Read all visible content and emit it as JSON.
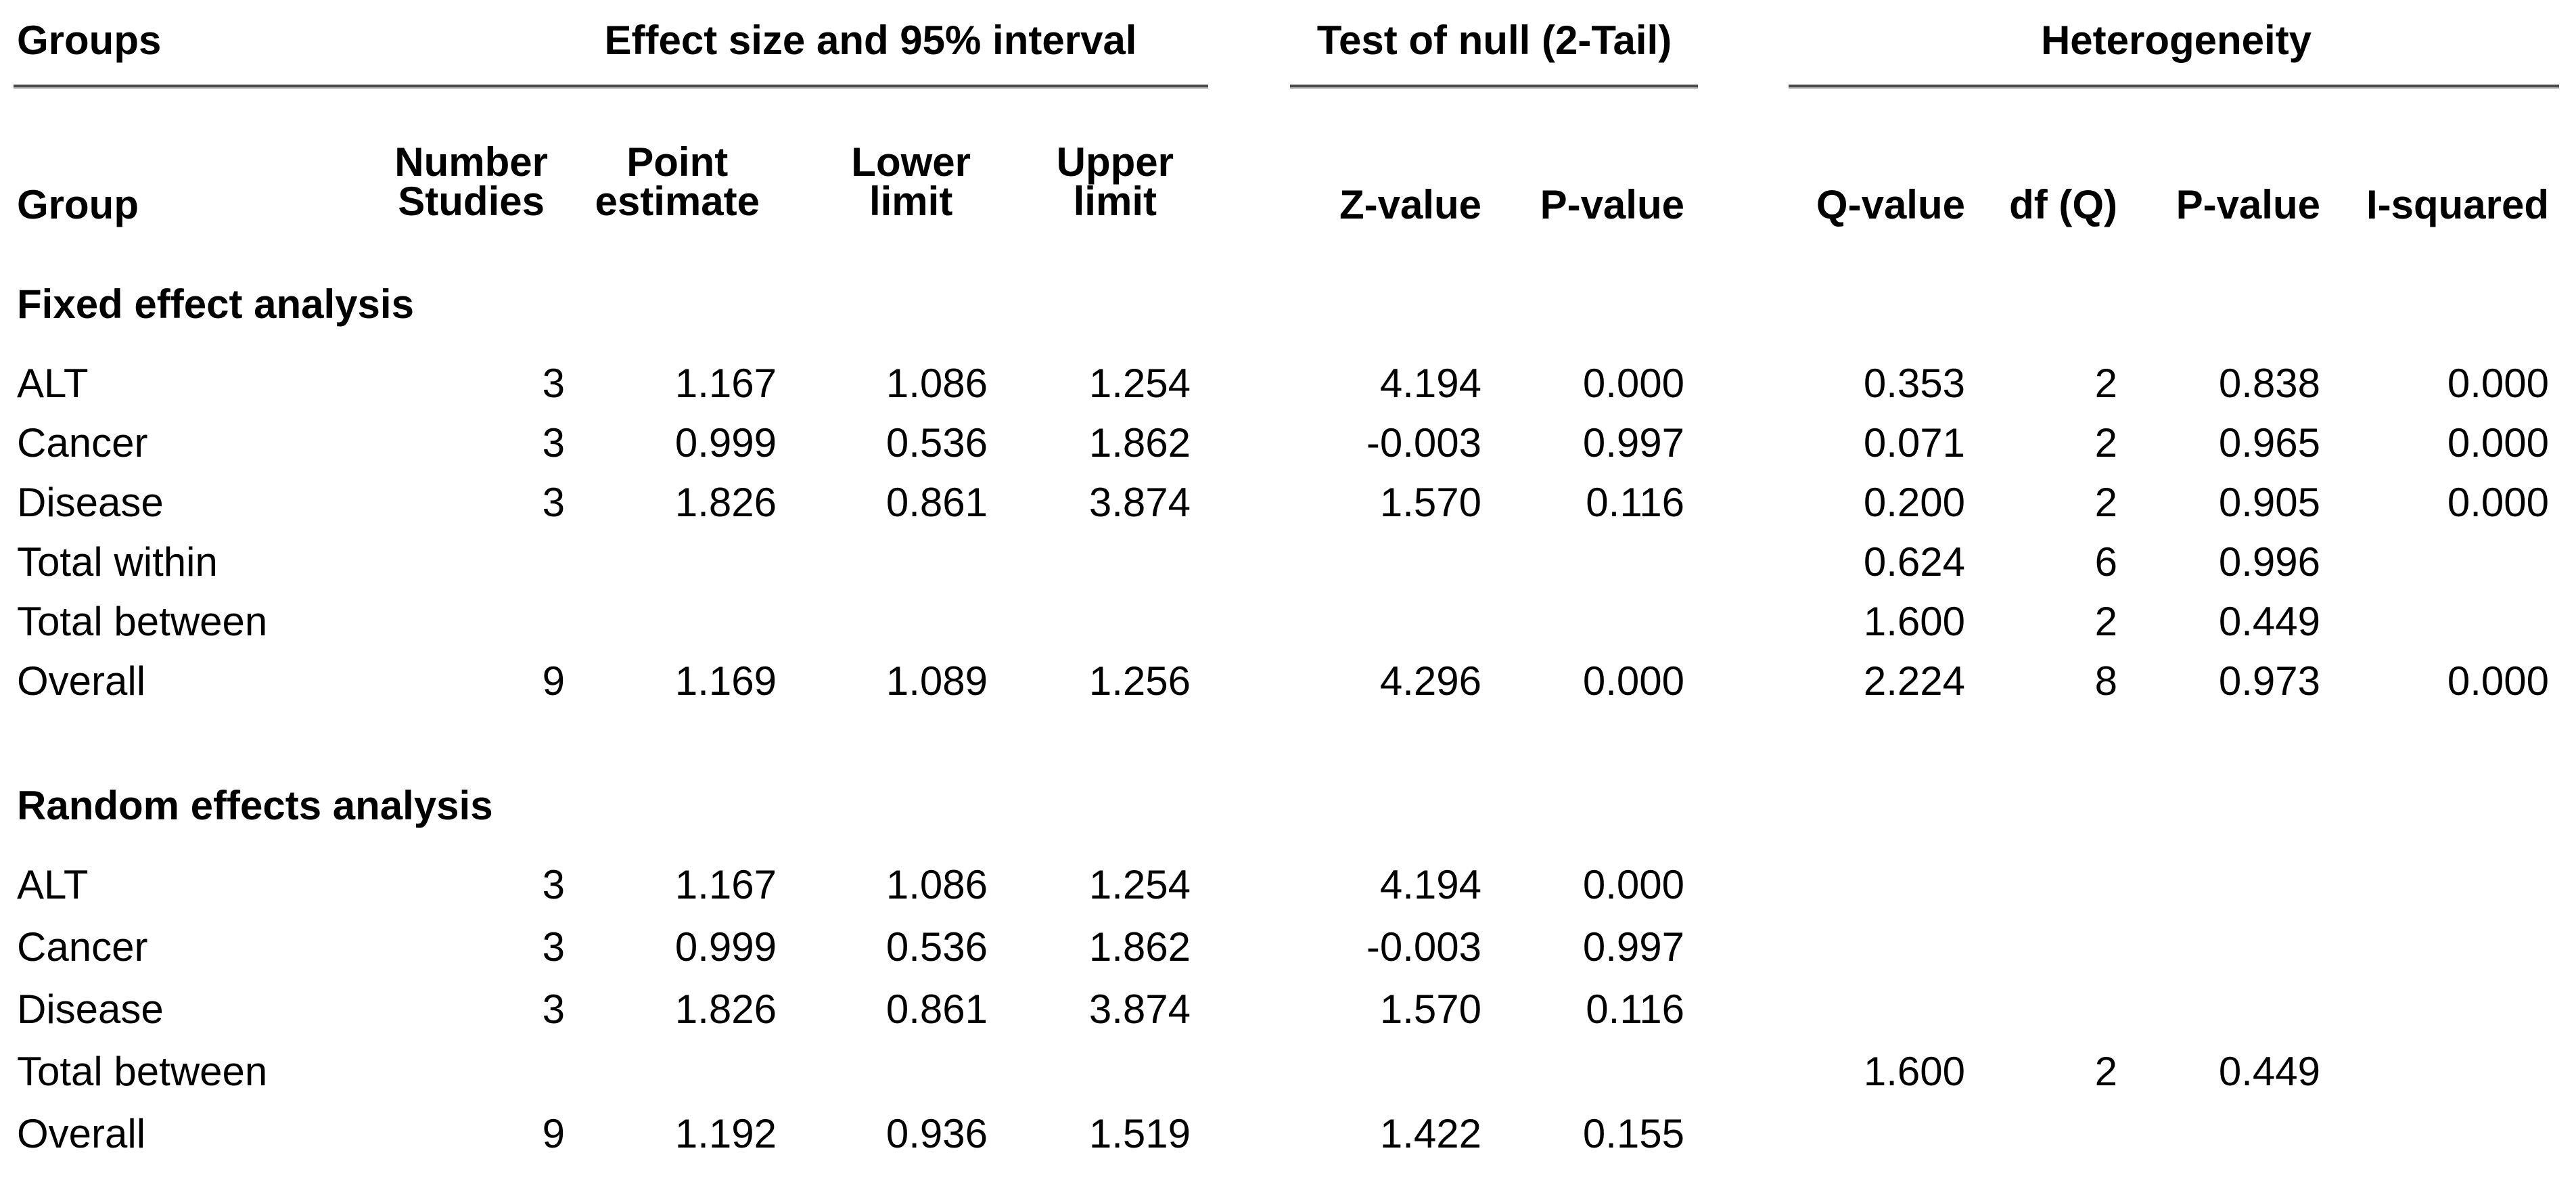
{
  "group_headers": {
    "groups": "Groups",
    "effect": "Effect size and 95% interval",
    "null_test": "Test of null (2-Tail)",
    "heterogeneity": "Heterogeneity"
  },
  "col_headers": {
    "group": "Group",
    "number": {
      "l1": "Number",
      "l2": "Studies"
    },
    "point": {
      "l1": "Point",
      "l2": "estimate"
    },
    "lower": {
      "l1": "Lower",
      "l2": "limit"
    },
    "upper": {
      "l1": "Upper",
      "l2": "limit"
    },
    "z": "Z-value",
    "p": "P-value",
    "q": "Q-value",
    "df": "df (Q)",
    "p_het": "P-value",
    "i2": "I-squared"
  },
  "sections": [
    {
      "title": "Fixed effect analysis",
      "rows": [
        {
          "label": "ALT",
          "n": "3",
          "point": "1.167",
          "lower": "1.086",
          "upper": "1.254",
          "z": "4.194",
          "p": "0.000",
          "q": "0.353",
          "df": "2",
          "p_het": "0.838",
          "i2": "0.000"
        },
        {
          "label": "Cancer",
          "n": "3",
          "point": "0.999",
          "lower": "0.536",
          "upper": "1.862",
          "z": "-0.003",
          "p": "0.997",
          "q": "0.071",
          "df": "2",
          "p_het": "0.965",
          "i2": "0.000"
        },
        {
          "label": "Disease",
          "n": "3",
          "point": "1.826",
          "lower": "0.861",
          "upper": "3.874",
          "z": "1.570",
          "p": "0.116",
          "q": "0.200",
          "df": "2",
          "p_het": "0.905",
          "i2": "0.000"
        },
        {
          "label": "Total within",
          "n": "",
          "point": "",
          "lower": "",
          "upper": "",
          "z": "",
          "p": "",
          "q": "0.624",
          "df": "6",
          "p_het": "0.996",
          "i2": ""
        },
        {
          "label": "Total between",
          "n": "",
          "point": "",
          "lower": "",
          "upper": "",
          "z": "",
          "p": "",
          "q": "1.600",
          "df": "2",
          "p_het": "0.449",
          "i2": ""
        },
        {
          "label": "Overall",
          "n": "9",
          "point": "1.169",
          "lower": "1.089",
          "upper": "1.256",
          "z": "4.296",
          "p": "0.000",
          "q": "2.224",
          "df": "8",
          "p_het": "0.973",
          "i2": "0.000"
        }
      ]
    },
    {
      "title": "Random effects analysis",
      "rows": [
        {
          "label": "ALT",
          "n": "3",
          "point": "1.167",
          "lower": "1.086",
          "upper": "1.254",
          "z": "4.194",
          "p": "0.000",
          "q": "",
          "df": "",
          "p_het": "",
          "i2": ""
        },
        {
          "label": "Cancer",
          "n": "3",
          "point": "0.999",
          "lower": "0.536",
          "upper": "1.862",
          "z": "-0.003",
          "p": "0.997",
          "q": "",
          "df": "",
          "p_het": "",
          "i2": ""
        },
        {
          "label": "Disease",
          "n": "3",
          "point": "1.826",
          "lower": "0.861",
          "upper": "3.874",
          "z": "1.570",
          "p": "0.116",
          "q": "",
          "df": "",
          "p_het": "",
          "i2": ""
        },
        {
          "label": "Total between",
          "n": "",
          "point": "",
          "lower": "",
          "upper": "",
          "z": "",
          "p": "",
          "q": "1.600",
          "df": "2",
          "p_het": "0.449",
          "i2": ""
        },
        {
          "label": "Overall",
          "n": "9",
          "point": "1.192",
          "lower": "0.936",
          "upper": "1.519",
          "z": "1.422",
          "p": "0.155",
          "q": "",
          "df": "",
          "p_het": "",
          "i2": ""
        }
      ]
    }
  ],
  "colors": {
    "background": "#ffffff",
    "text": "#000000",
    "rule_dark": "#4a4a4a",
    "rule_light": "#b0b0b0"
  }
}
